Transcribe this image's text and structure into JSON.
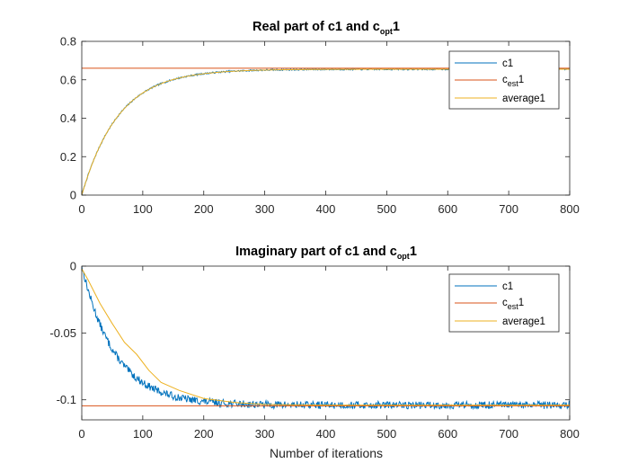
{
  "chart_data": [
    {
      "type": "line",
      "title_main": "Real part of c1 and c",
      "title_sub": "opt",
      "title_suffix": "1",
      "xlabel": "",
      "ylabel": "",
      "xlim": [
        0,
        800
      ],
      "ylim": [
        0,
        0.8
      ],
      "xticks": [
        0,
        100,
        200,
        300,
        400,
        500,
        600,
        700,
        800
      ],
      "yticks": [
        0,
        0.2,
        0.4,
        0.6,
        0.8
      ],
      "ytick_labels": [
        "0",
        "0.2",
        "0.4",
        "0.6",
        "0.8"
      ],
      "grid": false,
      "legend_position": "top-right",
      "c1": {
        "start": 0,
        "target": 0.655,
        "tau": 60,
        "noise": 0.004,
        "seed": 7,
        "samples": [
          [
            0,
            0
          ],
          [
            50,
            0.375
          ],
          [
            100,
            0.525
          ],
          [
            150,
            0.6
          ],
          [
            200,
            0.633
          ],
          [
            300,
            0.652
          ],
          [
            400,
            0.655
          ],
          [
            800,
            0.655
          ]
        ]
      },
      "c_est": {
        "value": 0.66
      },
      "average": {
        "start": 0,
        "target": 0.655,
        "tau": 60,
        "samples": [
          [
            0,
            0
          ],
          [
            100,
            0.525
          ],
          [
            200,
            0.633
          ],
          [
            300,
            0.652
          ],
          [
            800,
            0.655
          ]
        ]
      },
      "legend": [
        {
          "key": "c1",
          "main": "c1",
          "sub": "",
          "suffix": "",
          "color": "#0072BD"
        },
        {
          "key": "c_est",
          "main": "c",
          "sub": "est",
          "suffix": "1",
          "color": "#D95319"
        },
        {
          "key": "average",
          "main": "average1",
          "sub": "",
          "suffix": "",
          "color": "#EDB120"
        }
      ]
    },
    {
      "type": "line",
      "title_main": "Imaginary part of c1 and c",
      "title_sub": "opt",
      "title_suffix": "1",
      "xlabel": "Number of iterations",
      "ylabel": "",
      "xlim": [
        0,
        800
      ],
      "ylim": [
        -0.115,
        0
      ],
      "xticks": [
        0,
        100,
        200,
        300,
        400,
        500,
        600,
        700,
        800
      ],
      "yticks": [
        0,
        -0.05,
        -0.1
      ],
      "ytick_labels": [
        "0",
        "-0.05",
        "-0.1"
      ],
      "grid": false,
      "legend_position": "top-right",
      "c1": {
        "start": 0,
        "target": -0.104,
        "tau": 55,
        "noise": 0.0028,
        "seed": 13,
        "samples": [
          [
            0,
            0
          ],
          [
            50,
            -0.045
          ],
          [
            100,
            -0.074
          ],
          [
            150,
            -0.091
          ],
          [
            200,
            -0.098
          ],
          [
            300,
            -0.103
          ],
          [
            400,
            -0.104
          ],
          [
            800,
            -0.104
          ]
        ]
      },
      "c_est": {
        "value": -0.1045
      },
      "average": {
        "points": [
          [
            0,
            -0.002
          ],
          [
            10,
            -0.01
          ],
          [
            30,
            -0.028
          ],
          [
            50,
            -0.043
          ],
          [
            70,
            -0.057
          ],
          [
            90,
            -0.066
          ],
          [
            110,
            -0.078
          ],
          [
            130,
            -0.087
          ],
          [
            160,
            -0.093
          ],
          [
            200,
            -0.099
          ],
          [
            250,
            -0.102
          ],
          [
            300,
            -0.1035
          ],
          [
            400,
            -0.104
          ],
          [
            800,
            -0.104
          ]
        ]
      },
      "legend": [
        {
          "key": "c1",
          "main": "c1",
          "sub": "",
          "suffix": "",
          "color": "#0072BD"
        },
        {
          "key": "c_est",
          "main": "c",
          "sub": "est",
          "suffix": "1",
          "color": "#D95319"
        },
        {
          "key": "average",
          "main": "average1",
          "sub": "",
          "suffix": "",
          "color": "#EDB120"
        }
      ]
    }
  ],
  "colors": {
    "c1": "#0072BD",
    "c_est": "#D95319",
    "average": "#EDB120",
    "axis": "#262626"
  }
}
